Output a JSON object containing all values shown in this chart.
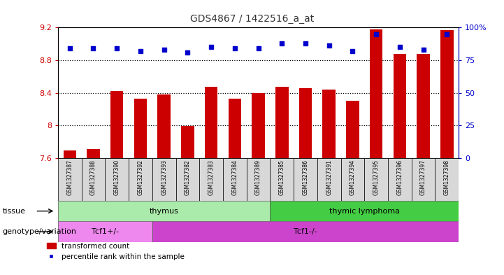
{
  "title": "GDS4867 / 1422516_a_at",
  "samples": [
    "GSM1327387",
    "GSM1327388",
    "GSM1327390",
    "GSM1327392",
    "GSM1327393",
    "GSM1327382",
    "GSM1327383",
    "GSM1327384",
    "GSM1327389",
    "GSM1327385",
    "GSM1327386",
    "GSM1327391",
    "GSM1327394",
    "GSM1327395",
    "GSM1327396",
    "GSM1327397",
    "GSM1327398"
  ],
  "bar_values": [
    7.69,
    7.71,
    8.42,
    8.33,
    8.38,
    7.99,
    8.47,
    8.33,
    8.4,
    8.47,
    8.46,
    8.44,
    8.3,
    9.18,
    8.88,
    8.88,
    9.17
  ],
  "percentile_values": [
    84,
    84,
    84,
    82,
    83,
    81,
    85,
    84,
    84,
    88,
    88,
    86,
    82,
    95,
    85,
    83,
    95
  ],
  "ylim_left": [
    7.6,
    9.2
  ],
  "ylim_right": [
    0,
    100
  ],
  "yticks_left": [
    7.6,
    8.0,
    8.4,
    8.8,
    9.2
  ],
  "yticks_left_labels": [
    "7.6",
    "8",
    "8.4",
    "8.8",
    "9.2"
  ],
  "yticks_right": [
    0,
    25,
    50,
    75,
    100
  ],
  "yticks_right_labels": [
    "0",
    "25",
    "50",
    "75",
    "100%"
  ],
  "bar_color": "#cc0000",
  "dot_color": "#0000cc",
  "hline_values": [
    8.8,
    8.4,
    8.0
  ],
  "tissue_groups": [
    {
      "label": "thymus",
      "start": 0,
      "end": 8,
      "color": "#aaeaaa"
    },
    {
      "label": "thymic lymphoma",
      "start": 9,
      "end": 16,
      "color": "#44cc44"
    }
  ],
  "genotype_groups": [
    {
      "label": "Tcf1+/-",
      "start": 0,
      "end": 3,
      "color": "#ee88ee"
    },
    {
      "label": "Tcf1-/-",
      "start": 4,
      "end": 16,
      "color": "#cc44cc"
    }
  ],
  "tissue_label": "tissue",
  "genotype_label": "genotype/variation",
  "legend_bar": "transformed count",
  "legend_dot": "percentile rank within the sample",
  "plot_bg": "#ffffff",
  "xtick_bg": "#d8d8d8",
  "left_tick_color": "#cc0000",
  "right_tick_color": "#0000cc"
}
